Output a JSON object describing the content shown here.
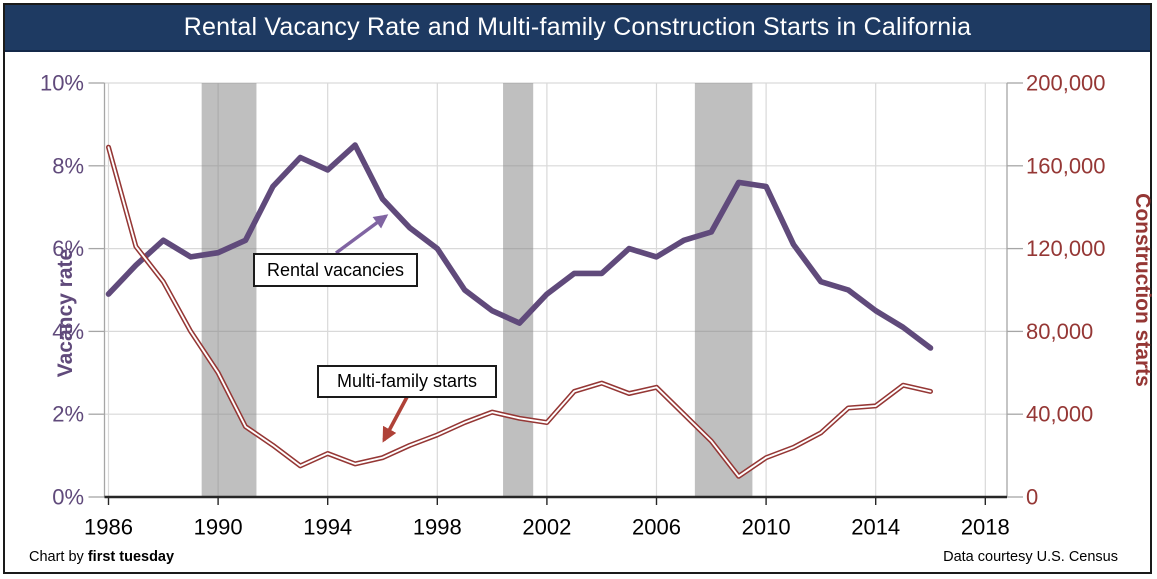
{
  "title": "Rental Vacancy Rate and Multi-family Construction Starts in California",
  "header": {
    "background_color": "#1E3A62",
    "text_color": "#FFFFFF"
  },
  "footer": {
    "credit_prefix": "Chart by ",
    "credit_brand": "first tuesday",
    "source": "Data courtesy U.S. Census"
  },
  "annotations": {
    "vacancy_callout": "Rental vacancies",
    "starts_callout": "Multi-family starts",
    "vacancy_arrow_color": "#8064A2",
    "starts_arrow_color": "#AF4238"
  },
  "left_axis": {
    "title": "Vacancy rate",
    "color": "#604A7B",
    "ticks": [
      "0%",
      "2%",
      "4%",
      "6%",
      "8%",
      "10%"
    ],
    "tick_values": [
      0,
      2,
      4,
      6,
      8,
      10
    ]
  },
  "right_axis": {
    "title": "Construction starts",
    "color": "#953735",
    "ticks": [
      "0",
      "40,000",
      "80,000",
      "120,000",
      "160,000",
      "200,000"
    ],
    "tick_values": [
      0,
      40000,
      80000,
      120000,
      160000,
      200000
    ]
  },
  "x_axis": {
    "ticks": [
      "1986",
      "1990",
      "1994",
      "1998",
      "2002",
      "2006",
      "2010",
      "2014",
      "2018"
    ],
    "tick_years": [
      1986,
      1990,
      1994,
      1998,
      2002,
      2006,
      2010,
      2014,
      2018
    ],
    "color": "#000000"
  },
  "chart_data": {
    "type": "line",
    "title": "Rental Vacancy Rate and Multi-family Construction Starts in California",
    "xlabel": "",
    "ylabel_left": "Vacancy rate",
    "ylabel_right": "Construction starts",
    "xlim": [
      1986,
      2018.6
    ],
    "ylim_left": [
      0,
      10
    ],
    "ylim_right": [
      0,
      200000
    ],
    "grid": "on",
    "legend": "callout-labels",
    "x": [
      1986,
      1987,
      1988,
      1989,
      1990,
      1991,
      1992,
      1993,
      1994,
      1995,
      1996,
      1997,
      1998,
      1999,
      2000,
      2001,
      2002,
      2003,
      2004,
      2005,
      2006,
      2007,
      2008,
      2009,
      2010,
      2011,
      2012,
      2013,
      2014,
      2015,
      2016
    ],
    "series": [
      {
        "name": "Rental vacancies",
        "axis": "left",
        "units": "percent",
        "color": "#604A7B",
        "line_style": "solid-thick",
        "values": [
          4.9,
          5.6,
          6.2,
          5.8,
          5.9,
          6.2,
          7.5,
          8.2,
          7.9,
          8.5,
          7.2,
          6.5,
          6.0,
          5.0,
          4.5,
          4.2,
          4.9,
          5.4,
          5.4,
          6.0,
          5.8,
          6.2,
          6.4,
          7.6,
          7.5,
          6.1,
          5.2,
          5.0,
          4.5,
          4.1,
          3.6
        ]
      },
      {
        "name": "Multi-family starts",
        "axis": "right",
        "units": "starts",
        "color": "#953735",
        "line_style": "double-outline",
        "values": [
          169000,
          121000,
          104000,
          80000,
          60000,
          34000,
          25000,
          15000,
          21000,
          16000,
          19000,
          25000,
          30000,
          36000,
          41000,
          38000,
          36000,
          51000,
          55000,
          50000,
          53000,
          40000,
          27000,
          10000,
          19000,
          24000,
          31000,
          43000,
          44000,
          54000,
          51000
        ]
      }
    ],
    "recession_bands_years": [
      [
        1989.4,
        1991.4
      ],
      [
        2000.4,
        2001.5
      ],
      [
        2007.4,
        2009.5
      ]
    ],
    "recession_band_color": "#7F7F7F",
    "gridline_color": "#D9D9D9"
  }
}
